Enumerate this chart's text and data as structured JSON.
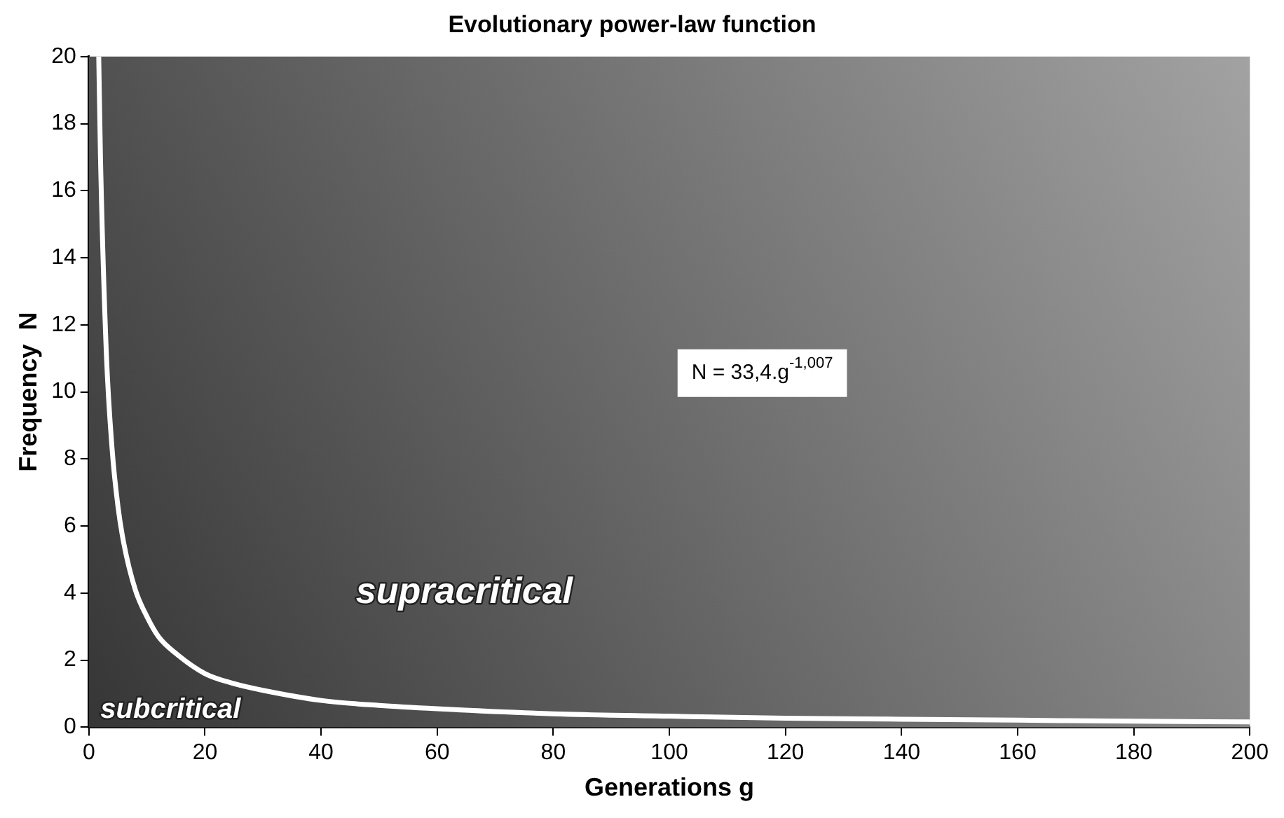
{
  "chart_data": {
    "type": "line",
    "title": "Evolutionary power-law function",
    "xlabel": "Generations g",
    "ylabel": "Frequency  N",
    "series": [
      {
        "color": "#ffffff",
        "x": [
          1.7,
          2,
          3,
          4,
          5,
          6,
          8,
          10,
          12,
          15,
          20,
          25,
          30,
          40,
          50,
          60,
          80,
          100,
          120,
          140,
          160,
          180,
          200
        ],
        "values": [
          20,
          17,
          11.2,
          8.3,
          6.6,
          5.5,
          4.1,
          3.3,
          2.7,
          2.2,
          1.6,
          1.3,
          1.1,
          0.8,
          0.65,
          0.55,
          0.4,
          0.33,
          0.27,
          0.24,
          0.21,
          0.18,
          0.16
        ]
      }
    ],
    "xlim": [
      0,
      200
    ],
    "xticks": [
      0,
      20,
      40,
      60,
      80,
      100,
      120,
      140,
      160,
      180,
      200
    ],
    "ylim": [
      0,
      20
    ],
    "yticks": [
      0,
      2,
      4,
      6,
      8,
      10,
      12,
      14,
      16,
      18,
      20
    ],
    "grid": false,
    "legend": false,
    "marker": "none",
    "line_style": "solid",
    "annotations": [
      "N = 33,4.g$^{-1,007}$",
      "supracritical",
      "subcritical"
    ]
  }
}
